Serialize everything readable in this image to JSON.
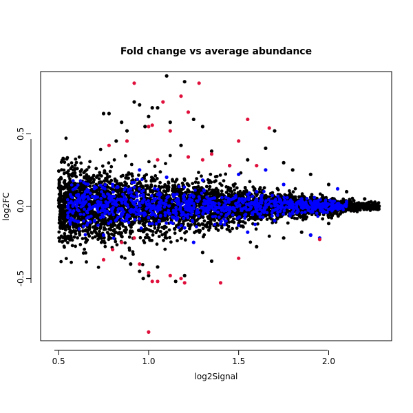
{
  "chart_data": {
    "type": "scatter",
    "title": "Fold change vs average abundance",
    "xlabel": "log2Signal",
    "ylabel": "log2FC",
    "xlim": [
      0.4,
      2.35
    ],
    "ylim": [
      -0.93,
      0.93
    ],
    "x_ticks": [
      0.5,
      1.0,
      1.5,
      2.0
    ],
    "x_tick_labels": [
      "0.5",
      "1.0",
      "1.5",
      "2.0"
    ],
    "y_ticks": [
      -0.5,
      0.0,
      0.5
    ],
    "y_tick_labels": [
      "-0.5",
      "0.0",
      "0.5"
    ],
    "grid": false,
    "legend": "none",
    "series": [
      {
        "color": "#000000",
        "points": [
          [
            0.75,
            0.64
          ],
          [
            0.78,
            0.64
          ],
          [
            0.85,
            0.58
          ],
          [
            0.92,
            0.72
          ],
          [
            0.95,
            0.7
          ],
          [
            1.0,
            0.62
          ],
          [
            1.02,
            0.68
          ],
          [
            1.05,
            0.68
          ],
          [
            1.1,
            0.9
          ],
          [
            1.2,
            0.86
          ],
          [
            1.25,
            0.6
          ],
          [
            1.3,
            0.55
          ],
          [
            1.12,
            0.58
          ],
          [
            0.98,
            0.55
          ],
          [
            1.7,
            0.52
          ],
          [
            1.65,
            0.4
          ],
          [
            1.75,
            0.3
          ],
          [
            1.8,
            0.25
          ],
          [
            1.9,
            0.22
          ],
          [
            2.0,
            0.15
          ],
          [
            2.1,
            0.1
          ],
          [
            2.2,
            0.05
          ],
          [
            2.28,
            0.0
          ],
          [
            2.25,
            -0.02
          ],
          [
            1.85,
            -0.18
          ],
          [
            1.9,
            -0.2
          ],
          [
            2.0,
            -0.12
          ],
          [
            1.75,
            -0.22
          ],
          [
            0.95,
            -0.45
          ],
          [
            0.97,
            -0.5
          ],
          [
            1.0,
            -0.48
          ],
          [
            1.05,
            -0.42
          ],
          [
            0.9,
            -0.4
          ],
          [
            0.85,
            -0.35
          ],
          [
            1.15,
            -0.52
          ],
          [
            1.2,
            -0.48
          ],
          [
            1.35,
            -0.38
          ],
          [
            1.3,
            -0.32
          ],
          [
            0.88,
            0.52
          ],
          [
            0.82,
            0.45
          ],
          [
            1.18,
            0.42
          ],
          [
            1.35,
            0.38
          ],
          [
            1.55,
            0.32
          ],
          [
            1.6,
            -0.28
          ]
        ]
      },
      {
        "color": "#0000ff",
        "points": [
          [
            0.6,
            0.0
          ],
          [
            0.65,
            0.1
          ],
          [
            0.7,
            -0.1
          ],
          [
            0.8,
            0.15
          ],
          [
            0.85,
            -0.05
          ],
          [
            0.9,
            0.12
          ],
          [
            1.0,
            -0.08
          ],
          [
            1.05,
            0.08
          ],
          [
            1.1,
            0.2
          ],
          [
            1.2,
            -0.15
          ],
          [
            1.3,
            0.18
          ],
          [
            1.4,
            -0.12
          ],
          [
            1.5,
            0.22
          ],
          [
            1.55,
            -0.18
          ],
          [
            1.6,
            0.1
          ],
          [
            1.7,
            -0.1
          ],
          [
            1.75,
            0.15
          ],
          [
            1.8,
            -0.05
          ],
          [
            1.85,
            0.05
          ],
          [
            1.9,
            -0.2
          ],
          [
            1.95,
            -0.22
          ],
          [
            2.05,
            0.12
          ],
          [
            1.65,
            0.25
          ],
          [
            1.45,
            0.28
          ],
          [
            1.25,
            -0.25
          ],
          [
            0.75,
            -0.2
          ],
          [
            0.95,
            0.25
          ]
        ]
      },
      {
        "color": "#e0103c",
        "points": [
          [
            0.92,
            0.85
          ],
          [
            1.08,
            0.72
          ],
          [
            1.18,
            0.76
          ],
          [
            1.28,
            0.85
          ],
          [
            1.22,
            0.65
          ],
          [
            1.55,
            0.6
          ],
          [
            1.67,
            0.54
          ],
          [
            0.78,
            0.42
          ],
          [
            0.88,
            0.45
          ],
          [
            1.0,
            0.55
          ],
          [
            1.02,
            0.56
          ],
          [
            1.12,
            0.52
          ],
          [
            1.35,
            0.36
          ],
          [
            1.5,
            0.45
          ],
          [
            1.45,
            0.28
          ],
          [
            1.6,
            0.28
          ],
          [
            1.3,
            0.32
          ],
          [
            1.05,
            0.32
          ],
          [
            1.22,
            0.34
          ],
          [
            0.92,
            -0.22
          ],
          [
            0.85,
            -0.25
          ],
          [
            0.8,
            -0.3
          ],
          [
            0.75,
            -0.37
          ],
          [
            0.95,
            -0.4
          ],
          [
            1.0,
            -0.46
          ],
          [
            1.02,
            -0.52
          ],
          [
            1.05,
            -0.52
          ],
          [
            1.12,
            -0.48
          ],
          [
            1.18,
            -0.5
          ],
          [
            1.2,
            -0.53
          ],
          [
            1.4,
            -0.53
          ],
          [
            1.5,
            -0.36
          ],
          [
            1.95,
            -0.23
          ],
          [
            1.0,
            -0.87
          ]
        ]
      }
    ]
  }
}
